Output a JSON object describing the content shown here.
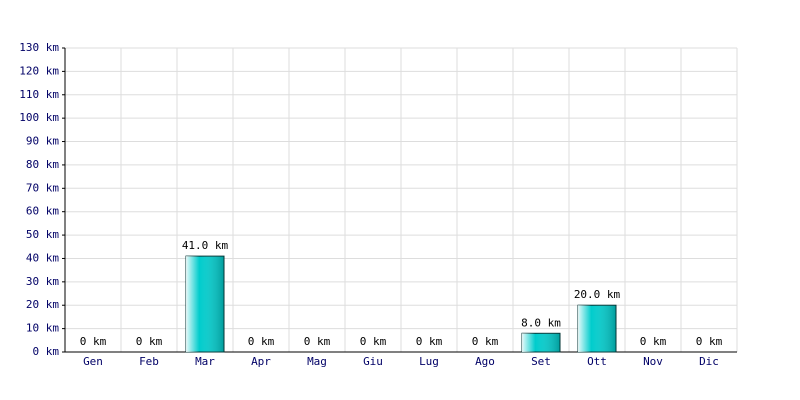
{
  "chart_data": {
    "type": "bar",
    "categories": [
      "Gen",
      "Feb",
      "Mar",
      "Apr",
      "Mag",
      "Giu",
      "Lug",
      "Ago",
      "Set",
      "Ott",
      "Nov",
      "Dic"
    ],
    "values": [
      0,
      0,
      41,
      0,
      0,
      0,
      0,
      0,
      8,
      20,
      0,
      0
    ],
    "value_labels": [
      "0 km",
      "0 km",
      "41.0 km",
      "0 km",
      "0 km",
      "0 km",
      "0 km",
      "0 km",
      "8.0 km",
      "20.0 km",
      "0 km",
      "0 km"
    ],
    "color": "#00cccc",
    "ylim": [
      0,
      130
    ],
    "yticks": [
      {
        "value": 0,
        "label": "0 km"
      },
      {
        "value": 10,
        "label": "10 km"
      },
      {
        "value": 20,
        "label": "20 km"
      },
      {
        "value": 30,
        "label": "30 km"
      },
      {
        "value": 40,
        "label": "40 km"
      },
      {
        "value": 50,
        "label": "50 km"
      },
      {
        "value": 60,
        "label": "60 km"
      },
      {
        "value": 70,
        "label": "70 km"
      },
      {
        "value": 80,
        "label": "80 km"
      },
      {
        "value": 90,
        "label": "90 km"
      },
      {
        "value": 100,
        "label": "100 km"
      },
      {
        "value": 110,
        "label": "110 km"
      },
      {
        "value": 120,
        "label": "120 km"
      },
      {
        "value": 130,
        "label": "130 km"
      }
    ],
    "grid": true
  }
}
